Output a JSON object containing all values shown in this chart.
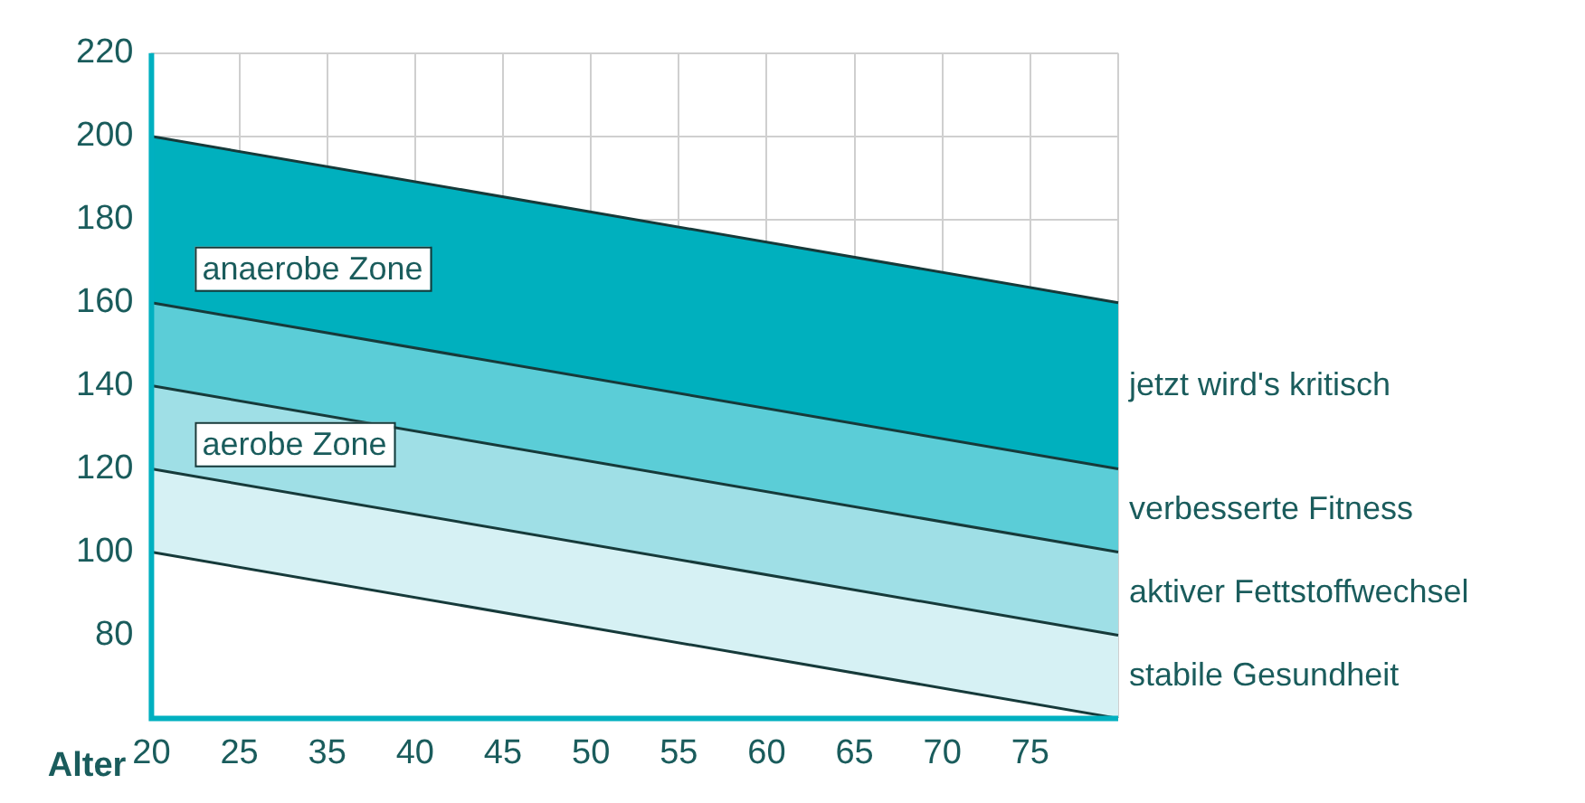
{
  "chart_data": {
    "type": "area",
    "xlabel": "Alter",
    "categories": [
      "20",
      "25",
      "35",
      "40",
      "45",
      "50",
      "55",
      "60",
      "65",
      "70",
      "75",
      null
    ],
    "series": [
      {
        "color": "#ffffff",
        "values": [
          100,
          null,
          null,
          null,
          null,
          null,
          null,
          null,
          null,
          null,
          null,
          60
        ]
      },
      {
        "name": "stabile Gesundheit",
        "color": "#d6f1f4",
        "values": [
          120,
          null,
          null,
          null,
          null,
          null,
          null,
          null,
          null,
          null,
          null,
          80
        ]
      },
      {
        "name": "aktiver Fettstoffwechsel",
        "color": "#9fdfe6",
        "values": [
          140,
          null,
          null,
          null,
          null,
          null,
          null,
          null,
          null,
          null,
          null,
          100
        ]
      },
      {
        "name": "verbesserte Fitness",
        "color": "#5bcdd7",
        "values": [
          160,
          null,
          null,
          null,
          null,
          null,
          null,
          null,
          null,
          null,
          null,
          120
        ]
      },
      {
        "name": "jetzt wird's kritisch",
        "color": "#00b0be",
        "values": [
          200,
          null,
          null,
          null,
          null,
          null,
          null,
          null,
          null,
          null,
          null,
          160
        ]
      }
    ],
    "ylim": [
      60,
      220
    ],
    "yticks": [
      80,
      100,
      120,
      140,
      160,
      180,
      200,
      220
    ],
    "annotations": [
      "anaerobe Zone",
      "aerobe Zone"
    ],
    "grid": true,
    "legend": false
  }
}
